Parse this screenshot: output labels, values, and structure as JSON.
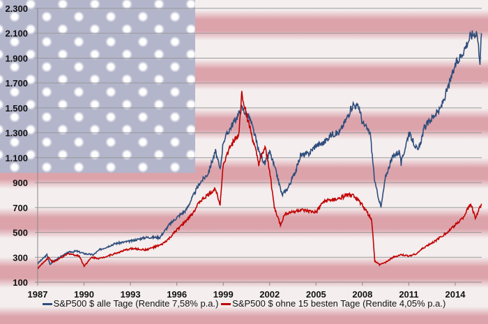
{
  "chart_data": {
    "type": "line",
    "title": "",
    "xlabel": "",
    "ylabel": "",
    "xlim": [
      1987,
      2015.7
    ],
    "ylim": [
      100,
      2300
    ],
    "x_ticks": [
      "1987",
      "1990",
      "1993",
      "1996",
      "1999",
      "2002",
      "2005",
      "2008",
      "2011",
      "2014"
    ],
    "y_ticks": [
      "100",
      "300",
      "500",
      "700",
      "900",
      "1.100",
      "1.300",
      "1.500",
      "1.700",
      "1.900",
      "2.100",
      "2.300"
    ],
    "grid": true,
    "legend_position": "bottom",
    "series": [
      {
        "name": "S&P500 $ alle Tage (Rendite 7,58% p.a.)",
        "color": "#2e4d7b",
        "points": [
          [
            1987.0,
            250
          ],
          [
            1987.6,
            320
          ],
          [
            1987.8,
            240
          ],
          [
            1988,
            270
          ],
          [
            1989,
            340
          ],
          [
            1989.5,
            350
          ],
          [
            1990,
            330
          ],
          [
            1990.6,
            320
          ],
          [
            1991,
            360
          ],
          [
            1992,
            410
          ],
          [
            1993,
            430
          ],
          [
            1994,
            460
          ],
          [
            1994.9,
            460
          ],
          [
            1995.5,
            560
          ],
          [
            1996,
            620
          ],
          [
            1996.6,
            680
          ],
          [
            1997,
            780
          ],
          [
            1997.5,
            900
          ],
          [
            1998,
            970
          ],
          [
            1998.5,
            1150
          ],
          [
            1998.8,
            1000
          ],
          [
            1999,
            1230
          ],
          [
            1999.5,
            1350
          ],
          [
            2000,
            1450
          ],
          [
            2000.2,
            1500
          ],
          [
            2000.7,
            1420
          ],
          [
            2001,
            1300
          ],
          [
            2001.3,
            1150
          ],
          [
            2001.7,
            1050
          ],
          [
            2002,
            1150
          ],
          [
            2002.5,
            950
          ],
          [
            2002.8,
            800
          ],
          [
            2003.2,
            860
          ],
          [
            2003.7,
            1000
          ],
          [
            2004,
            1120
          ],
          [
            2004.5,
            1130
          ],
          [
            2005,
            1200
          ],
          [
            2005.5,
            1220
          ],
          [
            2006,
            1290
          ],
          [
            2006.5,
            1300
          ],
          [
            2007,
            1420
          ],
          [
            2007.4,
            1530
          ],
          [
            2007.8,
            1500
          ],
          [
            2008,
            1380
          ],
          [
            2008.5,
            1300
          ],
          [
            2008.8,
            900
          ],
          [
            2009.2,
            700
          ],
          [
            2009.5,
            950
          ],
          [
            2010,
            1120
          ],
          [
            2010.4,
            1150
          ],
          [
            2010.5,
            1050
          ],
          [
            2011,
            1300
          ],
          [
            2011.6,
            1150
          ],
          [
            2012,
            1340
          ],
          [
            2012.7,
            1450
          ],
          [
            2013,
            1480
          ],
          [
            2013.5,
            1650
          ],
          [
            2014,
            1840
          ],
          [
            2014.5,
            1950
          ],
          [
            2015,
            2080
          ],
          [
            2015.4,
            2110
          ],
          [
            2015.6,
            1880
          ],
          [
            2015.7,
            2100
          ]
        ]
      },
      {
        "name": "S&P500 $ ohne 15 besten Tage (Rendite 4,05% p.a.)",
        "color": "#c00000",
        "points": [
          [
            1987,
            210
          ],
          [
            1987.7,
            300
          ],
          [
            1988,
            260
          ],
          [
            1989,
            330
          ],
          [
            1989.7,
            310
          ],
          [
            1990,
            230
          ],
          [
            1990.5,
            300
          ],
          [
            1991,
            290
          ],
          [
            1992,
            330
          ],
          [
            1993,
            370
          ],
          [
            1994,
            360
          ],
          [
            1995,
            400
          ],
          [
            1995.5,
            450
          ],
          [
            1996,
            520
          ],
          [
            1996.5,
            580
          ],
          [
            1997,
            650
          ],
          [
            1997.5,
            750
          ],
          [
            1998,
            800
          ],
          [
            1998.5,
            850
          ],
          [
            1998.8,
            730
          ],
          [
            1999,
            1050
          ],
          [
            1999.5,
            1200
          ],
          [
            2000,
            1280
          ],
          [
            2000.2,
            1620
          ],
          [
            2000.5,
            1450
          ],
          [
            2001,
            1200
          ],
          [
            2001.3,
            1050
          ],
          [
            2001.7,
            1180
          ],
          [
            2002,
            1000
          ],
          [
            2002.3,
            700
          ],
          [
            2002.7,
            560
          ],
          [
            2003,
            650
          ],
          [
            2004,
            680
          ],
          [
            2004.5,
            670
          ],
          [
            2005,
            660
          ],
          [
            2005.5,
            750
          ],
          [
            2006,
            760
          ],
          [
            2006.5,
            770
          ],
          [
            2007,
            800
          ],
          [
            2007.5,
            790
          ],
          [
            2008,
            720
          ],
          [
            2008.6,
            600
          ],
          [
            2008.8,
            270
          ],
          [
            2009.1,
            240
          ],
          [
            2009.5,
            260
          ],
          [
            2010,
            300
          ],
          [
            2010.5,
            320
          ],
          [
            2011,
            310
          ],
          [
            2011.5,
            330
          ],
          [
            2012,
            380
          ],
          [
            2012.7,
            430
          ],
          [
            2013,
            460
          ],
          [
            2013.5,
            500
          ],
          [
            2014,
            560
          ],
          [
            2014.5,
            620
          ],
          [
            2015,
            730
          ],
          [
            2015.3,
            620
          ],
          [
            2015.7,
            730
          ]
        ]
      }
    ]
  }
}
